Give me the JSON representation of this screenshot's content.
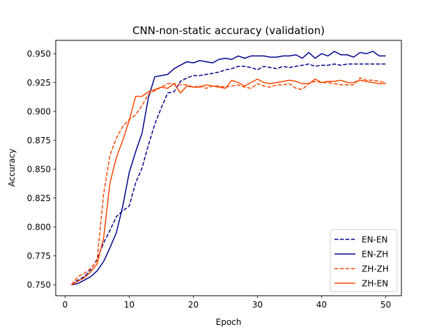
{
  "chart_data": {
    "type": "line",
    "title": "CNN-non-static accuracy (validation)",
    "xlabel": "Epoch",
    "ylabel": "Accuracy",
    "xlim": [
      -1.45,
      52.45
    ],
    "ylim": [
      0.7405,
      0.9615
    ],
    "xticks": [
      0,
      10,
      20,
      30,
      40,
      50
    ],
    "yticks": [
      0.75,
      0.775,
      0.8,
      0.825,
      0.85,
      0.875,
      0.9,
      0.925,
      0.95
    ],
    "ytick_labels": [
      "0.750",
      "0.775",
      "0.800",
      "0.825",
      "0.850",
      "0.875",
      "0.900",
      "0.925",
      "0.950"
    ],
    "grid": false,
    "legend_position": "bottom-right",
    "x": [
      1,
      2,
      3,
      4,
      5,
      6,
      7,
      8,
      9,
      10,
      11,
      12,
      13,
      14,
      15,
      16,
      17,
      18,
      19,
      20,
      21,
      22,
      23,
      24,
      25,
      26,
      27,
      28,
      29,
      30,
      31,
      32,
      33,
      34,
      35,
      36,
      37,
      38,
      39,
      40,
      41,
      42,
      43,
      44,
      45,
      46,
      47,
      48,
      49,
      50
    ],
    "series": [
      {
        "name": "EN-EN",
        "color": "#00008b",
        "dash": "dashed",
        "values": [
          0.75,
          0.754,
          0.757,
          0.763,
          0.772,
          0.786,
          0.797,
          0.809,
          0.814,
          0.818,
          0.838,
          0.851,
          0.871,
          0.889,
          0.903,
          0.916,
          0.917,
          0.926,
          0.929,
          0.931,
          0.931,
          0.932,
          0.933,
          0.934,
          0.936,
          0.937,
          0.939,
          0.939,
          0.938,
          0.936,
          0.939,
          0.938,
          0.937,
          0.939,
          0.938,
          0.939,
          0.94,
          0.941,
          0.939,
          0.94,
          0.94,
          0.941,
          0.94,
          0.941,
          0.941,
          0.941,
          0.941,
          0.941,
          0.941,
          0.941
        ]
      },
      {
        "name": "EN-ZH",
        "color": "#00008b",
        "dash": "solid",
        "values": [
          0.75,
          0.751,
          0.754,
          0.757,
          0.762,
          0.77,
          0.782,
          0.795,
          0.818,
          0.847,
          0.865,
          0.881,
          0.912,
          0.93,
          0.931,
          0.932,
          0.937,
          0.94,
          0.943,
          0.942,
          0.944,
          0.943,
          0.942,
          0.945,
          0.946,
          0.945,
          0.948,
          0.946,
          0.948,
          0.948,
          0.948,
          0.947,
          0.947,
          0.948,
          0.948,
          0.949,
          0.946,
          0.951,
          0.946,
          0.95,
          0.948,
          0.952,
          0.949,
          0.949,
          0.947,
          0.951,
          0.95,
          0.952,
          0.948,
          0.948
        ]
      },
      {
        "name": "ZH-ZH",
        "color": "#ff4500",
        "dash": "dashed",
        "values": [
          0.75,
          0.757,
          0.76,
          0.764,
          0.771,
          0.828,
          0.862,
          0.877,
          0.887,
          0.893,
          0.897,
          0.905,
          0.915,
          0.918,
          0.921,
          0.924,
          0.924,
          0.923,
          0.923,
          0.921,
          0.922,
          0.92,
          0.922,
          0.922,
          0.921,
          0.922,
          0.923,
          0.921,
          0.92,
          0.924,
          0.922,
          0.921,
          0.923,
          0.923,
          0.924,
          0.92,
          0.919,
          0.924,
          0.926,
          0.925,
          0.925,
          0.924,
          0.923,
          0.923,
          0.923,
          0.929,
          0.927,
          0.927,
          0.926,
          0.925
        ]
      },
      {
        "name": "ZH-EN",
        "color": "#ff4500",
        "dash": "solid",
        "values": [
          0.75,
          0.753,
          0.756,
          0.761,
          0.768,
          0.79,
          0.838,
          0.86,
          0.875,
          0.892,
          0.913,
          0.913,
          0.917,
          0.919,
          0.921,
          0.92,
          0.924,
          0.916,
          0.922,
          0.921,
          0.921,
          0.923,
          0.922,
          0.921,
          0.92,
          0.927,
          0.925,
          0.922,
          0.925,
          0.928,
          0.925,
          0.924,
          0.925,
          0.926,
          0.927,
          0.926,
          0.924,
          0.924,
          0.928,
          0.925,
          0.926,
          0.926,
          0.927,
          0.925,
          0.925,
          0.927,
          0.926,
          0.925,
          0.924,
          0.924
        ]
      }
    ]
  }
}
